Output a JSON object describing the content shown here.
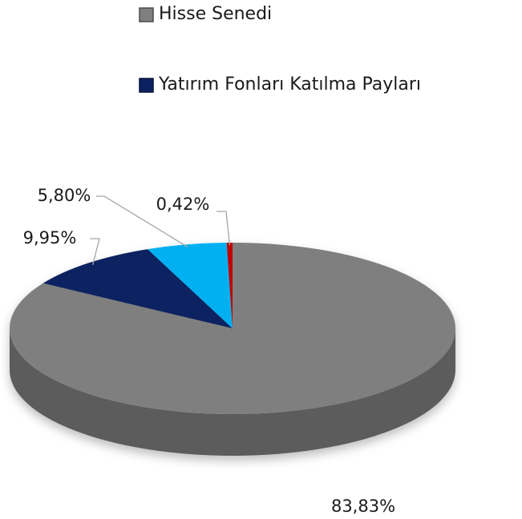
{
  "chart_data": {
    "type": "pie",
    "categories": [
      "Hisse Senedi",
      "Yatırım Fonları Katılma Payları",
      null,
      null
    ],
    "values": [
      83.83,
      9.95,
      5.8,
      0.42
    ],
    "value_labels": [
      "83,83%",
      "9,95%",
      "5,80%",
      "0,42%"
    ],
    "colors": [
      "#7f7f7f",
      "#0b2160",
      "#00b0f0",
      "#c00000"
    ]
  }
}
